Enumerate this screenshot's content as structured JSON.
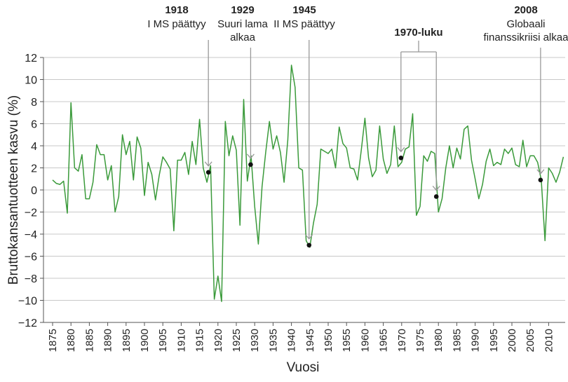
{
  "chart_data": {
    "type": "line",
    "title": "",
    "xlabel": "Vuosi",
    "ylabel": "Bruttokansantuotteen kasvu (%)",
    "xlim": [
      1875,
      2014
    ],
    "ylim": [
      -12,
      12
    ],
    "yticks": [
      -12,
      -10,
      -8,
      -6,
      -4,
      -2,
      0,
      2,
      4,
      6,
      8,
      10,
      12
    ],
    "xticks": [
      1875,
      1880,
      1885,
      1890,
      1895,
      1900,
      1905,
      1910,
      1915,
      1920,
      1925,
      1930,
      1935,
      1940,
      1945,
      1950,
      1955,
      1960,
      1965,
      1970,
      1975,
      1980,
      1985,
      1990,
      1995,
      2000,
      2005,
      2010
    ],
    "grid": "horizontal",
    "line_color": "#3a9a3a",
    "x_start": 1875,
    "values": [
      0.9,
      0.6,
      0.5,
      0.8,
      -2.1,
      7.9,
      2.0,
      1.7,
      3.2,
      -0.8,
      -0.8,
      0.7,
      4.1,
      3.2,
      3.2,
      0.9,
      2.2,
      -2.0,
      -0.6,
      5.0,
      3.2,
      4.4,
      0.9,
      4.8,
      3.8,
      -0.5,
      2.5,
      1.4,
      -0.9,
      1.3,
      3.0,
      2.5,
      1.9,
      -3.7,
      2.7,
      2.7,
      3.4,
      1.4,
      4.4,
      2.3,
      6.4,
      2.0,
      0.7,
      2.2,
      -9.9,
      -7.8,
      -10.1,
      6.2,
      3.1,
      4.9,
      3.6,
      -3.2,
      8.2,
      0.8,
      3.1,
      -1.5,
      -4.9,
      0.3,
      3.4,
      6.2,
      3.7,
      4.9,
      3.4,
      0.7,
      4.5,
      11.3,
      9.3,
      2.0,
      1.8,
      -4.6,
      -5.2,
      -3.0,
      -1.3,
      3.7,
      3.5,
      3.3,
      3.7,
      2.0,
      5.7,
      4.2,
      3.8,
      2.0,
      1.9,
      0.9,
      3.6,
      6.5,
      2.9,
      1.2,
      1.8,
      5.8,
      2.8,
      1.5,
      2.3,
      5.8,
      2.1,
      2.5,
      3.7,
      3.9,
      6.9,
      -2.3,
      -1.5,
      3.1,
      2.6,
      3.5,
      3.3,
      -2.0,
      -0.8,
      2.0,
      4.0,
      2.0,
      3.8,
      2.8,
      5.5,
      5.8,
      2.7,
      1.0,
      -0.8,
      0.5,
      2.6,
      3.7,
      2.2,
      2.5,
      2.3,
      3.7,
      3.3,
      3.8,
      2.3,
      2.1,
      4.5,
      2.1,
      3.1,
      3.1,
      2.5,
      0.9,
      -4.6,
      2.0,
      1.5,
      0.7,
      1.6,
      3.0
    ],
    "annotations": [
      {
        "year_label": "1918",
        "text": [
          "I MS päättyy"
        ],
        "x": 1917.4,
        "y": 1.6
      },
      {
        "year_label": "1929",
        "text": [
          "Suuri lama",
          "alkaa"
        ],
        "x": 1928.9,
        "y": 2.3
      },
      {
        "year_label": "1945",
        "text": [
          "II MS päättyy"
        ],
        "x": 1944.8,
        "y": -5.0
      },
      {
        "year_label": "1970-luku",
        "text": [],
        "bracket": [
          1970,
          1980
        ],
        "points": [
          {
            "x": 1970,
            "y": 2.9
          },
          {
            "x": 1980,
            "y": -0.6
          }
        ]
      },
      {
        "year_label": "2008",
        "text": [
          "Globaali",
          "finanssikriisi alkaa"
        ],
        "x": 2007.8,
        "y": 0.9
      }
    ]
  }
}
